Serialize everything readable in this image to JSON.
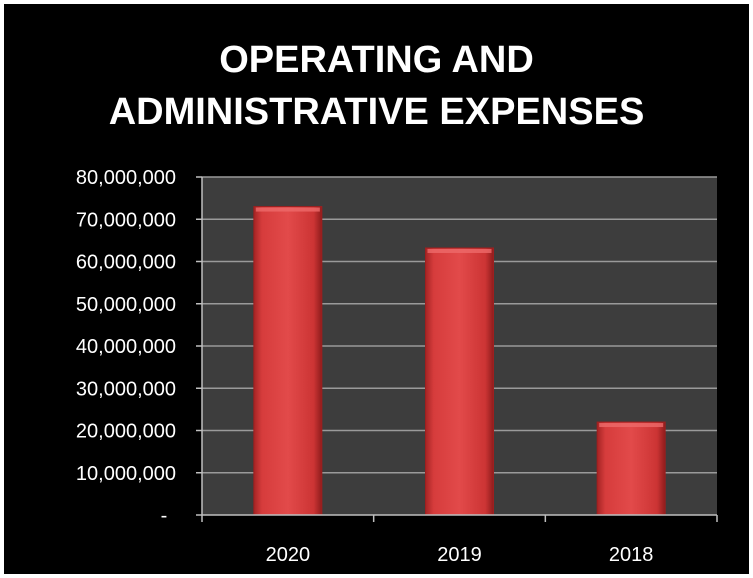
{
  "chart_data": {
    "type": "bar",
    "title_lines": [
      "OPERATING AND",
      "ADMINISTRATIVE EXPENSES"
    ],
    "categories": [
      "2020",
      "2019",
      "2018"
    ],
    "values": [
      73000000,
      63200000,
      22000000
    ],
    "ylim": [
      0,
      80000000
    ],
    "yticks": [
      0,
      10000000,
      20000000,
      30000000,
      40000000,
      50000000,
      60000000,
      70000000,
      80000000
    ],
    "ytick_labels": [
      "-",
      "10,000,000",
      "20,000,000",
      "30,000,000",
      "40,000,000",
      "50,000,000",
      "60,000,000",
      "70,000,000",
      "80,000,000"
    ],
    "grid": true,
    "colors": {
      "background": "#000000",
      "plot_area": "#3d3d3d",
      "bar": "#d23a3a",
      "bar_dark": "#9e1f1f",
      "grid": "#9a9a9a",
      "text": "#ffffff"
    }
  }
}
